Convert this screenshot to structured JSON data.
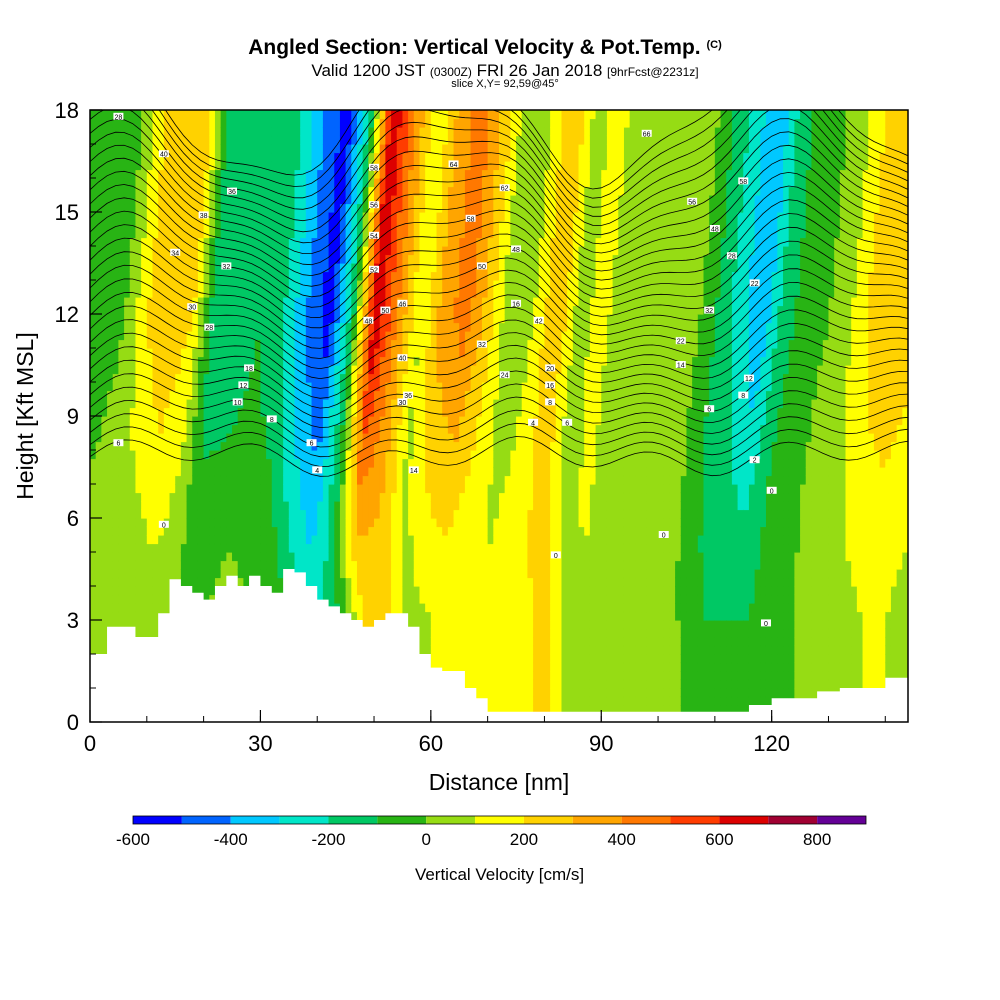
{
  "header": {
    "title": "Angled Section: Vertical Velocity & Pot.Temp.",
    "title_unit": "(C)",
    "valid_prefix": "Valid 1200 JST",
    "valid_utc": "(0300Z)",
    "valid_date": "FRI 26 Jan 2018",
    "forecast": "[9hrFcst@2231z]",
    "slice": "slice X,Y= 92,59@45°"
  },
  "chart_data": {
    "type": "heatmap",
    "xlabel": "Distance [nm]",
    "ylabel": "Height [Kft MSL]",
    "xlim": [
      0,
      144
    ],
    "ylim": [
      0,
      18
    ],
    "x_ticks": [
      0,
      30,
      60,
      90,
      120
    ],
    "y_ticks": [
      0,
      3,
      6,
      9,
      12,
      15,
      18
    ],
    "colorbar": {
      "label": "Vertical Velocity [cm/s]",
      "levels": [
        -600,
        -500,
        -400,
        -300,
        -200,
        -100,
        0,
        100,
        200,
        300,
        400,
        500,
        600,
        700,
        800,
        900
      ],
      "tick_values": [
        -600,
        -400,
        -200,
        0,
        200,
        400,
        600,
        800
      ],
      "colors": [
        "#0000ff",
        "#0064ff",
        "#00c8ff",
        "#00e6c8",
        "#00c864",
        "#28b414",
        "#96dc14",
        "#ffff00",
        "#ffd200",
        "#ffa500",
        "#ff7800",
        "#ff3c00",
        "#dc0000",
        "#a00032",
        "#640096"
      ]
    },
    "velocity_field": {
      "x": [
        0,
        4,
        8,
        12,
        16,
        20,
        24,
        28,
        32,
        36,
        40,
        44,
        48,
        52,
        56,
        60,
        64,
        68,
        72,
        76,
        80,
        84,
        88,
        92,
        96,
        100,
        104,
        108,
        112,
        116,
        120,
        124,
        128,
        132,
        136,
        140,
        144
      ],
      "upper_cm_s": [
        -50,
        0,
        200,
        300,
        200,
        -200,
        -200,
        -100,
        -200,
        -400,
        -550,
        -150,
        700,
        400,
        100,
        350,
        450,
        250,
        0,
        100,
        300,
        50,
        150,
        0,
        0,
        0,
        50,
        -100,
        -250,
        -400,
        -150,
        -50,
        0,
        100,
        250,
        300,
        250
      ],
      "lower_cm_s": [
        50,
        50,
        0,
        50,
        0,
        0,
        50,
        0,
        0,
        -150,
        -250,
        -100,
        200,
        250,
        50,
        100,
        100,
        100,
        150,
        150,
        250,
        50,
        100,
        50,
        50,
        0,
        0,
        -100,
        -100,
        -100,
        -50,
        0,
        50,
        50,
        100,
        100,
        50
      ]
    },
    "terrain_kft": {
      "x": [
        0,
        3,
        5,
        8,
        10,
        12,
        14,
        16,
        18,
        20,
        22,
        24,
        26,
        28,
        30,
        32,
        34,
        36,
        38,
        40,
        42,
        44,
        46,
        48,
        50,
        52,
        54,
        56,
        58,
        60,
        62,
        64,
        66,
        68,
        70,
        74,
        80,
        86,
        90,
        96,
        100,
        104,
        110,
        114,
        116,
        118,
        120,
        124,
        128,
        132,
        136,
        140,
        144
      ],
      "height": [
        2.0,
        2.8,
        2.8,
        2.5,
        2.5,
        3.2,
        4.2,
        4.0,
        3.8,
        3.6,
        4.0,
        4.3,
        4.0,
        4.3,
        4.0,
        3.8,
        4.5,
        4.4,
        4.0,
        3.6,
        3.4,
        3.2,
        3.0,
        2.8,
        3.0,
        3.2,
        3.2,
        2.8,
        2.0,
        1.6,
        1.5,
        1.5,
        1.0,
        0.7,
        0.3,
        0.3,
        0.3,
        0.3,
        0.3,
        0.3,
        0.3,
        0.3,
        0.3,
        0.3,
        0.5,
        0.5,
        0.7,
        0.7,
        0.9,
        1.0,
        1.0,
        1.3,
        1.3
      ]
    },
    "theta_contour_labels": [
      {
        "x": 5,
        "y": 17.8,
        "text": "28"
      },
      {
        "x": 13,
        "y": 16.7,
        "text": "40"
      },
      {
        "x": 25,
        "y": 15.6,
        "text": "36"
      },
      {
        "x": 20,
        "y": 14.9,
        "text": "38"
      },
      {
        "x": 15,
        "y": 13.8,
        "text": "34"
      },
      {
        "x": 24,
        "y": 13.4,
        "text": "32"
      },
      {
        "x": 18,
        "y": 12.2,
        "text": "30"
      },
      {
        "x": 21,
        "y": 11.6,
        "text": "28"
      },
      {
        "x": 28,
        "y": 10.4,
        "text": "18"
      },
      {
        "x": 27,
        "y": 9.9,
        "text": "12"
      },
      {
        "x": 26,
        "y": 9.4,
        "text": "10"
      },
      {
        "x": 32,
        "y": 8.9,
        "text": "8"
      },
      {
        "x": 5,
        "y": 8.2,
        "text": "6"
      },
      {
        "x": 13,
        "y": 5.8,
        "text": "0"
      },
      {
        "x": 39,
        "y": 8.2,
        "text": "6"
      },
      {
        "x": 40,
        "y": 7.4,
        "text": "4"
      },
      {
        "x": 50,
        "y": 16.3,
        "text": "58"
      },
      {
        "x": 50,
        "y": 15.2,
        "text": "56"
      },
      {
        "x": 50,
        "y": 14.3,
        "text": "54"
      },
      {
        "x": 50,
        "y": 13.3,
        "text": "52"
      },
      {
        "x": 52,
        "y": 12.1,
        "text": "50"
      },
      {
        "x": 55,
        "y": 12.3,
        "text": "46"
      },
      {
        "x": 49,
        "y": 11.8,
        "text": "48"
      },
      {
        "x": 55,
        "y": 10.7,
        "text": "40"
      },
      {
        "x": 56,
        "y": 9.6,
        "text": "36"
      },
      {
        "x": 55,
        "y": 9.4,
        "text": "30"
      },
      {
        "x": 57,
        "y": 7.4,
        "text": "14"
      },
      {
        "x": 64,
        "y": 16.4,
        "text": "64"
      },
      {
        "x": 67,
        "y": 14.8,
        "text": "58"
      },
      {
        "x": 73,
        "y": 15.7,
        "text": "62"
      },
      {
        "x": 69,
        "y": 13.4,
        "text": "50"
      },
      {
        "x": 75,
        "y": 13.9,
        "text": "48"
      },
      {
        "x": 75,
        "y": 12.3,
        "text": "16"
      },
      {
        "x": 79,
        "y": 11.8,
        "text": "42"
      },
      {
        "x": 69,
        "y": 11.1,
        "text": "32"
      },
      {
        "x": 73,
        "y": 10.2,
        "text": "24"
      },
      {
        "x": 81,
        "y": 10.4,
        "text": "20"
      },
      {
        "x": 81,
        "y": 9.9,
        "text": "16"
      },
      {
        "x": 81,
        "y": 9.4,
        "text": "8"
      },
      {
        "x": 78,
        "y": 8.8,
        "text": "4"
      },
      {
        "x": 84,
        "y": 8.8,
        "text": "6"
      },
      {
        "x": 82,
        "y": 4.9,
        "text": "0"
      },
      {
        "x": 98,
        "y": 17.3,
        "text": "66"
      },
      {
        "x": 106,
        "y": 15.3,
        "text": "56"
      },
      {
        "x": 110,
        "y": 14.5,
        "text": "48"
      },
      {
        "x": 115,
        "y": 15.9,
        "text": "58"
      },
      {
        "x": 113,
        "y": 13.7,
        "text": "28"
      },
      {
        "x": 117,
        "y": 12.9,
        "text": "22"
      },
      {
        "x": 109,
        "y": 12.1,
        "text": "32"
      },
      {
        "x": 104,
        "y": 11.2,
        "text": "22"
      },
      {
        "x": 104,
        "y": 10.5,
        "text": "14"
      },
      {
        "x": 116,
        "y": 10.1,
        "text": "12"
      },
      {
        "x": 115,
        "y": 9.6,
        "text": "8"
      },
      {
        "x": 109,
        "y": 9.2,
        "text": "6"
      },
      {
        "x": 117,
        "y": 7.7,
        "text": "2"
      },
      {
        "x": 120,
        "y": 6.8,
        "text": "0"
      },
      {
        "x": 101,
        "y": 5.5,
        "text": "0"
      },
      {
        "x": 119,
        "y": 2.9,
        "text": "0"
      }
    ]
  }
}
